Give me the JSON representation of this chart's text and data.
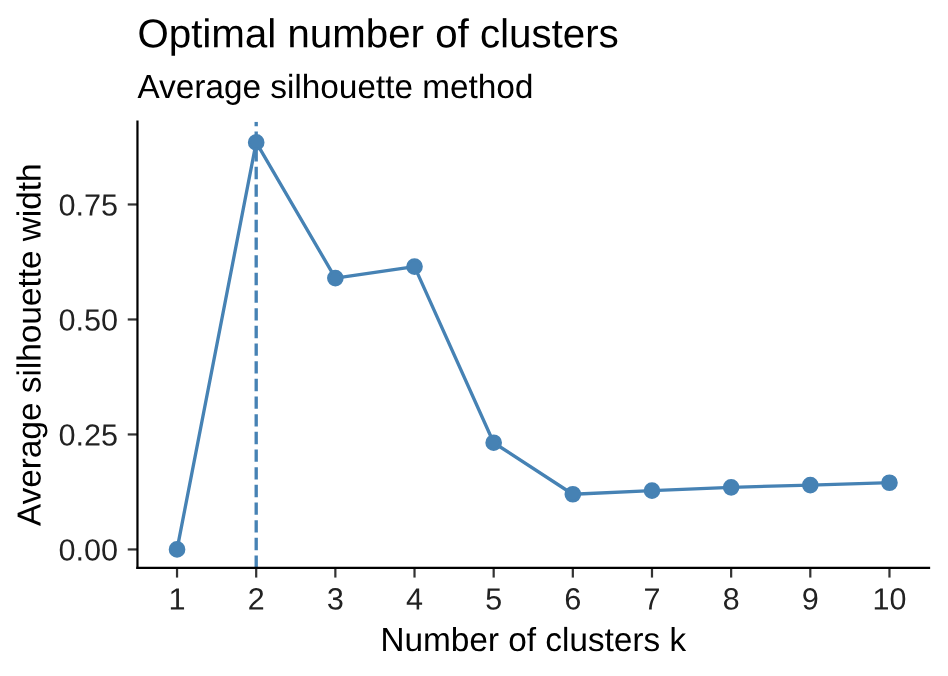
{
  "chart_data": {
    "type": "line",
    "title": "Optimal number of clusters",
    "subtitle": "Average silhouette method",
    "xlabel": "Number of clusters k",
    "ylabel": "Average silhouette width",
    "x": [
      1,
      2,
      3,
      4,
      5,
      6,
      7,
      8,
      9,
      10
    ],
    "series": [
      {
        "color": "#4682b4",
        "values": [
          0.0,
          0.885,
          0.59,
          0.615,
          0.232,
          0.12,
          0.128,
          0.135,
          0.14,
          0.145
        ]
      }
    ],
    "xlim": [
      0.5,
      10.5
    ],
    "xticks": [
      1,
      2,
      3,
      4,
      5,
      6,
      7,
      8,
      9,
      10
    ],
    "ylim": [
      -0.04,
      0.93
    ],
    "yticks": [
      {
        "value": 0,
        "label": "0.00"
      },
      {
        "value": 0.25,
        "label": "0.25"
      },
      {
        "value": 0.5,
        "label": "0.50"
      },
      {
        "value": 0.75,
        "label": "0.75"
      }
    ],
    "ref_lines": [
      {
        "axis": "x",
        "value": 2,
        "color": "#4682b4",
        "line_style": "dashed"
      }
    ],
    "marker": "circle",
    "line_style": "solid",
    "grid": false,
    "legend": false
  }
}
